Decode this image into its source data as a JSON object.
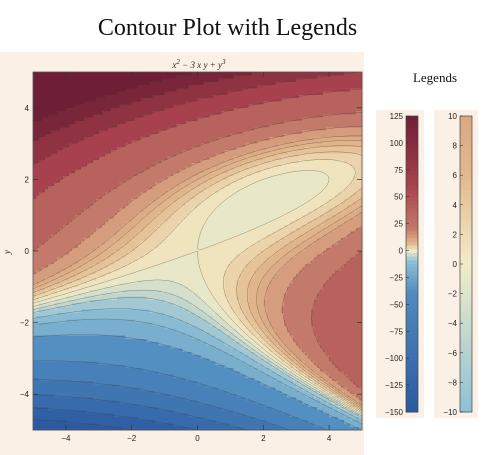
{
  "chart_data": {
    "type": "contour",
    "title": "Contour Plot with Legends",
    "function_label_html": "x<tspan baseline-shift='super' font-size='7'>2</tspan> − 3 x y + y<tspan baseline-shift='super' font-size='7'>3</tspan>",
    "function": "x^2 - 3 x y + y^3",
    "xlabel": "",
    "ylabel": "y",
    "xlim": [
      -5,
      5
    ],
    "ylim": [
      -5,
      5
    ],
    "xticks": [
      -4,
      -2,
      0,
      2,
      4
    ],
    "yticks": [
      -4,
      -2,
      0,
      2,
      4
    ],
    "xtick_labels": [
      "−4",
      "−2",
      "0",
      "2",
      "4"
    ],
    "ytick_labels": [
      "−4",
      "−2",
      "0",
      "2",
      "4"
    ],
    "contour_levels": [
      -150,
      -125,
      -100,
      -75,
      -50,
      -25,
      -15,
      -10,
      -6,
      -4,
      -2,
      0,
      2,
      4,
      6,
      8,
      10,
      15,
      25,
      50,
      75,
      100,
      125
    ],
    "legends_title": "Legends",
    "legend1": {
      "range": [
        -150,
        125
      ],
      "ticks": [
        125,
        100,
        75,
        50,
        25,
        0,
        -25,
        -50,
        -75,
        -100,
        -125,
        -150
      ],
      "tick_labels": [
        "125",
        "100",
        "75",
        "50",
        "25",
        "0",
        "−25",
        "−50",
        "−75",
        "−100",
        "−125",
        "−150"
      ]
    },
    "legend2": {
      "range": [
        -10,
        10
      ],
      "ticks": [
        10,
        8,
        6,
        4,
        2,
        0,
        -2,
        -4,
        -6,
        -8,
        -10
      ],
      "tick_labels": [
        "10",
        "8",
        "6",
        "4",
        "2",
        "0",
        "−2",
        "−4",
        "−6",
        "−8",
        "−10"
      ]
    },
    "colors": {
      "neg_dark": "#2b5aa0",
      "neg_light": "#8ec0d6",
      "zero": "#f2ecc8",
      "pos_light": "#e3b98e",
      "pos_mid": "#c47a6a",
      "pos_dark": "#6e1f35",
      "panel_bg": "#fbf0e5"
    }
  }
}
